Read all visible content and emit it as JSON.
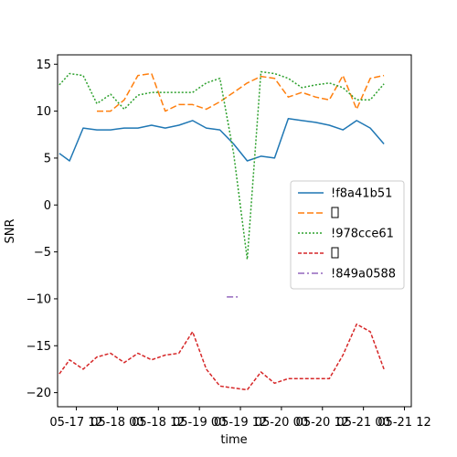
{
  "chart_data": {
    "type": "line",
    "xlabel": "time",
    "ylabel": "SNR",
    "ylim": [
      -21.5,
      16
    ],
    "xlim": [
      "2024-05-17 06:30",
      "2024-05-21 14:00"
    ],
    "grid": false,
    "legend_position": "center-right",
    "x_ticks": [
      "05-17 12",
      "05-18 00",
      "05-18 12",
      "05-19 00",
      "05-19 12",
      "05-20 00",
      "05-20 12",
      "05-21 00",
      "05-21 12"
    ],
    "x_tick_times": [
      "2024-05-17 12:00",
      "2024-05-18 00:00",
      "2024-05-18 12:00",
      "2024-05-19 00:00",
      "2024-05-19 12:00",
      "2024-05-20 00:00",
      "2024-05-20 12:00",
      "2024-05-21 00:00",
      "2024-05-21 12:00"
    ],
    "y_ticks": [
      15,
      10,
      5,
      0,
      -5,
      -10,
      -15,
      -20
    ],
    "y_tick_labels": [
      "15",
      "10",
      "5",
      "0",
      "−5",
      "−10",
      "−15",
      "−20"
    ],
    "x": [
      "2024-05-17 07:00",
      "2024-05-17 10:00",
      "2024-05-17 14:00",
      "2024-05-17 18:00",
      "2024-05-17 22:00",
      "2024-05-18 02:00",
      "2024-05-18 06:00",
      "2024-05-18 10:00",
      "2024-05-18 14:00",
      "2024-05-18 18:00",
      "2024-05-18 22:00",
      "2024-05-19 02:00",
      "2024-05-19 06:00",
      "2024-05-19 10:00",
      "2024-05-19 14:00",
      "2024-05-19 18:00",
      "2024-05-19 22:00",
      "2024-05-20 02:00",
      "2024-05-20 06:00",
      "2024-05-20 10:00",
      "2024-05-20 14:00",
      "2024-05-20 18:00",
      "2024-05-20 22:00",
      "2024-05-21 02:00",
      "2024-05-21 06:00",
      "2024-05-21 10:00"
    ],
    "series": [
      {
        "name": "!f8a41b51",
        "color": "#1f77b4",
        "dash": "solid",
        "values": [
          5.5,
          4.7,
          8.2,
          8.0,
          8.0,
          8.2,
          8.2,
          8.5,
          8.2,
          8.5,
          9.0,
          8.2,
          8.0,
          6.5,
          4.7,
          5.2,
          5.0,
          9.2,
          9.0,
          8.8,
          8.5,
          8.0,
          9.0,
          8.2,
          6.5,
          null
        ]
      },
      {
        "name": "",
        "color": "#ff7f0e",
        "dash": "dashed",
        "values": [
          null,
          null,
          null,
          10.0,
          10.0,
          11.2,
          13.8,
          14.0,
          10.0,
          10.7,
          10.7,
          10.2,
          11.0,
          12.0,
          13.0,
          13.7,
          13.5,
          11.5,
          12.0,
          11.5,
          11.2,
          13.8,
          10.2,
          13.5,
          13.8,
          null
        ]
      },
      {
        "name": "!978cce61",
        "color": "#2ca02c",
        "dash": "dotted",
        "values": [
          12.8,
          14.0,
          13.8,
          10.8,
          11.8,
          10.2,
          11.7,
          12.0,
          12.0,
          12.0,
          12.0,
          13.0,
          13.5,
          5.5,
          -5.8,
          14.2,
          14.0,
          13.5,
          12.5,
          12.8,
          13.0,
          12.5,
          11.2,
          11.2,
          12.9,
          null
        ]
      },
      {
        "name": "",
        "color": "#d62728",
        "dash": "short-dash",
        "values": [
          -18.0,
          -16.5,
          -17.5,
          -16.2,
          -15.8,
          -16.8,
          -15.8,
          -16.5,
          -16.0,
          -15.8,
          -13.5,
          -17.5,
          -19.3,
          -19.5,
          -19.7,
          -17.8,
          -19.0,
          -18.5,
          -18.5,
          -18.5,
          -18.5,
          -16.0,
          -12.7,
          -13.5,
          -17.5,
          null
        ]
      },
      {
        "name": "!849a0588",
        "color": "#9467bd",
        "dash": "dash-dot",
        "points": [
          [
            "2024-05-19 08:00",
            -9.8
          ],
          [
            "2024-05-19 12:00",
            -9.8
          ]
        ]
      }
    ]
  }
}
